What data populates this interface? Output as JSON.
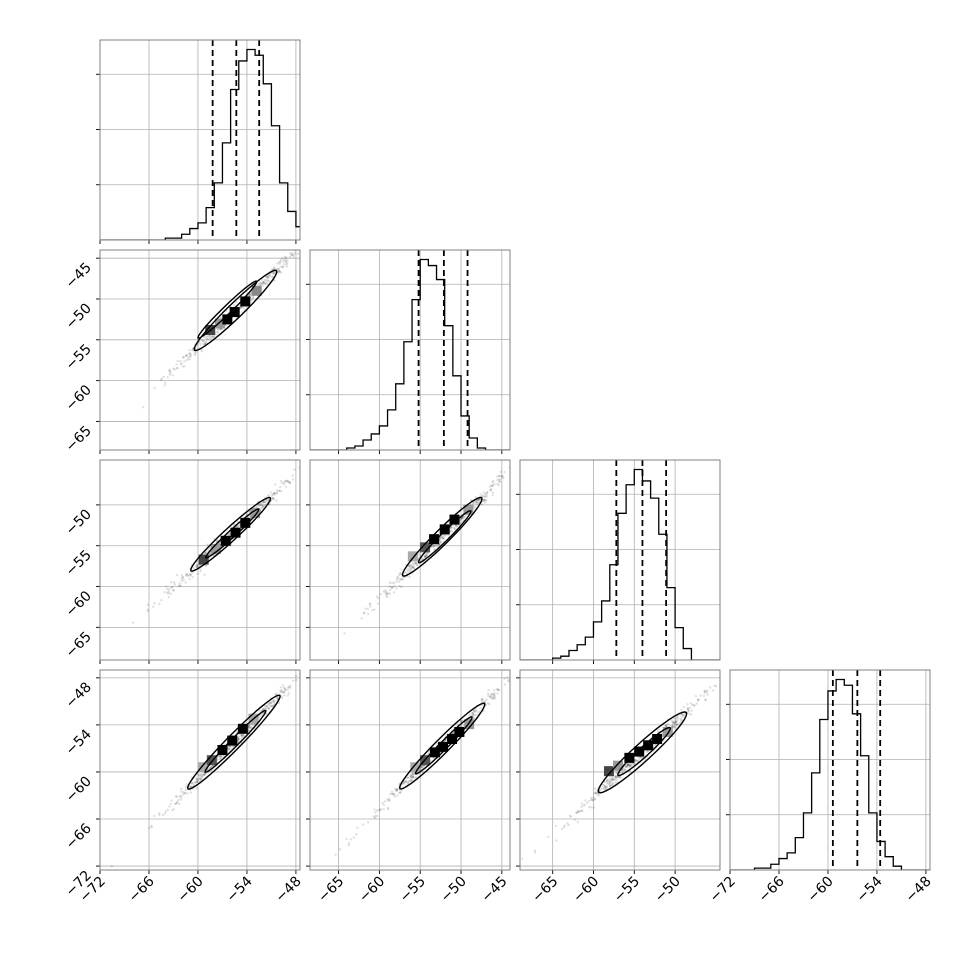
{
  "chart_data": {
    "type": "corner",
    "parameters": 4,
    "grid": true,
    "quantiles": [
      0.16,
      0.5,
      0.84
    ],
    "diagonal_histograms": [
      {
        "bin_edges": [
          -72,
          -71,
          -70,
          -69,
          -68,
          -67,
          -66,
          -65,
          -64,
          -63,
          -62,
          -61,
          -60,
          -59,
          -58,
          -57,
          -56,
          -55,
          -54,
          -53,
          -52,
          -51,
          -50,
          -49,
          -48,
          -47,
          -46,
          -45,
          -44,
          -43,
          -42,
          -41,
          -40
        ],
        "counts": [
          0,
          0,
          0,
          0,
          0,
          0,
          0,
          0,
          1,
          1,
          3,
          6,
          9,
          17,
          30,
          51,
          79,
          94,
          100,
          97,
          82,
          60,
          30,
          15,
          7,
          2,
          0,
          0,
          0,
          0,
          0,
          0
        ],
        "xlim": [
          -72,
          -47.5
        ],
        "quantile_values": [
          -58.2,
          -55.3,
          -52.5
        ]
      },
      {
        "bin_edges": [
          -69,
          -68,
          -67,
          -66,
          -65,
          -64,
          -63,
          -62,
          -61,
          -60,
          -59,
          -58,
          -57,
          -56,
          -55,
          -54,
          -53,
          -52,
          -51,
          -50,
          -49,
          -48,
          -47,
          -46,
          -45,
          -44
        ],
        "counts": [
          0,
          0,
          0,
          0,
          0,
          1,
          2,
          5,
          8,
          12,
          20,
          33,
          54,
          75,
          95,
          92,
          85,
          62,
          37,
          17,
          6,
          1,
          0,
          0,
          0
        ],
        "xlim": [
          -68.5,
          -44
        ],
        "quantile_values": [
          -55.2,
          -52.1,
          -49.2
        ]
      },
      {
        "bin_edges": [
          -69,
          -68,
          -67,
          -66,
          -65,
          -64,
          -63,
          -62,
          -61,
          -60,
          -59,
          -58,
          -57,
          -56,
          -55,
          -54,
          -53,
          -52,
          -51,
          -50,
          -49,
          -48,
          -47,
          -46,
          -45,
          -44
        ],
        "counts": [
          0,
          0,
          0,
          0,
          1,
          2,
          5,
          8,
          12,
          20,
          31,
          50,
          77,
          92,
          100,
          94,
          85,
          66,
          38,
          17,
          6,
          0,
          0,
          0,
          0
        ],
        "xlim": [
          -69,
          -44.5
        ],
        "quantile_values": [
          -57.2,
          -54.0,
          -51.1
        ]
      },
      {
        "bin_edges": [
          -72,
          -71,
          -70,
          -69,
          -68,
          -67,
          -66,
          -65,
          -64,
          -63,
          -62,
          -61,
          -60,
          -59,
          -58,
          -57,
          -56,
          -55,
          -54,
          -53,
          -52,
          -51,
          -50,
          -49,
          -48,
          -47,
          -46,
          -45,
          -44,
          -43,
          -42,
          -41,
          -40
        ],
        "counts": [
          0,
          0,
          0,
          1,
          1,
          3,
          6,
          9,
          17,
          30,
          51,
          79,
          94,
          100,
          97,
          82,
          60,
          30,
          15,
          7,
          2,
          0,
          0,
          0,
          0,
          0,
          0,
          0,
          0,
          0,
          0,
          0
        ],
        "xlim": [
          -72,
          -47.5
        ],
        "quantile_values": [
          -59.4,
          -56.4,
          -53.6
        ]
      }
    ],
    "parameter_axes": [
      {
        "lim": [
          -72,
          -47.5
        ],
        "ticks": [
          -72,
          -66,
          -60,
          -54,
          -48
        ],
        "tick_labels": [
          "−72",
          "−66",
          "−60",
          "−54",
          "−48"
        ]
      },
      {
        "lim": [
          -68.5,
          -44
        ],
        "ticks": [
          -65,
          -60,
          -55,
          -50,
          -45
        ],
        "tick_labels": [
          "−65",
          "−60",
          "−55",
          "−50",
          "−45"
        ]
      },
      {
        "lim": [
          -69,
          -44.5
        ],
        "ticks": [
          -65,
          -60,
          -55,
          -50
        ],
        "tick_labels": [
          "−65",
          "−60",
          "−55",
          "−50"
        ]
      },
      {
        "lim": [
          -72,
          -47.5
        ],
        "ticks": [
          -72,
          -66,
          -60,
          -54,
          -48
        ],
        "tick_labels": [
          "−72",
          "−66",
          "−60",
          "−54",
          "−48"
        ]
      }
    ],
    "row_axes": [
      null,
      {
        "lim": [
          -68.5,
          -44
        ],
        "ticks": [
          -65,
          -60,
          -55,
          -50,
          -45
        ],
        "tick_labels": [
          "−65",
          "−60",
          "−55",
          "−50",
          "−45"
        ]
      },
      {
        "lim": [
          -69,
          -44.5
        ],
        "ticks": [
          -65,
          -60,
          -55,
          -50
        ],
        "tick_labels": [
          "−65",
          "−60",
          "−55",
          "−50"
        ]
      },
      {
        "lim": [
          -72.5,
          -47
        ],
        "ticks": [
          -72,
          -66,
          -60,
          -54,
          -48
        ],
        "tick_labels": [
          "−72",
          "−66",
          "−60",
          "−54",
          "−48"
        ]
      }
    ],
    "point_color": "#000000",
    "line_color": "#000000",
    "grid_color": "#b0b0b0",
    "frame_color": "#808080",
    "density_cells": [
      {
        "row": 1,
        "col": 0,
        "cells": [
          [
            -58.5,
            -53.8,
            "#444444"
          ],
          [
            -57.3,
            -53.0,
            "#999999"
          ],
          [
            -56.4,
            -52.5,
            "#000000"
          ],
          [
            -55.5,
            -51.6,
            "#000000"
          ],
          [
            -54.2,
            -50.3,
            "#000000"
          ],
          [
            -52.8,
            -49.0,
            "#888888"
          ]
        ]
      },
      {
        "row": 2,
        "col": 0,
        "cells": [
          [
            -59.3,
            -56.7,
            "#444444"
          ],
          [
            -57.8,
            -55.4,
            "#999999"
          ],
          [
            -56.6,
            -54.4,
            "#000000"
          ],
          [
            -55.4,
            -53.4,
            "#000000"
          ],
          [
            -54.2,
            -52.2,
            "#000000"
          ],
          [
            -53.0,
            -51.0,
            "#999999"
          ]
        ]
      },
      {
        "row": 2,
        "col": 1,
        "cells": [
          [
            -55.9,
            -56.3,
            "#aaaaaa"
          ],
          [
            -54.4,
            -55.2,
            "#555555"
          ],
          [
            -53.3,
            -54.2,
            "#000000"
          ],
          [
            -52.0,
            -53.0,
            "#000000"
          ],
          [
            -50.8,
            -51.8,
            "#000000"
          ],
          [
            -49.1,
            -50.6,
            "#999999"
          ]
        ]
      },
      {
        "row": 3,
        "col": 0,
        "cells": [
          [
            -59.4,
            -59.4,
            "#aaaaaa"
          ],
          [
            -58.3,
            -58.5,
            "#555555"
          ],
          [
            -57.0,
            -57.2,
            "#000000"
          ],
          [
            -55.8,
            -56.0,
            "#000000"
          ],
          [
            -54.5,
            -54.5,
            "#000000"
          ],
          [
            -53.2,
            -53.2,
            "#aaaaaa"
          ]
        ]
      },
      {
        "row": 3,
        "col": 1,
        "cells": [
          [
            -55.6,
            -59.4,
            "#aaaaaa"
          ],
          [
            -54.4,
            -58.5,
            "#555555"
          ],
          [
            -53.2,
            -57.5,
            "#000000"
          ],
          [
            -52.2,
            -56.8,
            "#000000"
          ],
          [
            -51.1,
            -55.8,
            "#000000"
          ],
          [
            -50.2,
            -54.9,
            "#000000"
          ],
          [
            -49.0,
            -53.9,
            "#999999"
          ]
        ]
      },
      {
        "row": 3,
        "col": 2,
        "cells": [
          [
            -58.1,
            -59.9,
            "#444444"
          ],
          [
            -57.0,
            -59.2,
            "#999999"
          ],
          [
            -55.6,
            -58.2,
            "#000000"
          ],
          [
            -54.4,
            -57.4,
            "#000000"
          ],
          [
            -53.3,
            -56.6,
            "#000000"
          ],
          [
            -52.2,
            -55.8,
            "#000000"
          ],
          [
            -50.9,
            -54.9,
            "#999999"
          ]
        ]
      }
    ],
    "contours": [
      {
        "row": 1,
        "col": 0,
        "center": [
          -55.4,
          -51.4
        ],
        "slope": 0.97,
        "half_length": 7.0,
        "half_width": 0.9,
        "inner_offset": [
          -1.0,
          0.1
        ],
        "inner_half_length": 5.0
      },
      {
        "row": 2,
        "col": 0,
        "center": [
          -56.0,
          -53.6
        ],
        "slope": 0.92,
        "half_length": 6.6,
        "half_width": 0.8,
        "inner_offset": [
          0.2,
          0.1
        ],
        "inner_half_length": 4.4
      },
      {
        "row": 2,
        "col": 1,
        "center": [
          -52.3,
          -53.9
        ],
        "slope": 0.99,
        "half_length": 6.8,
        "half_width": 0.9,
        "inner_offset": [
          0.3,
          0.0
        ],
        "inner_half_length": 4.5
      },
      {
        "row": 3,
        "col": 0,
        "center": [
          -55.6,
          -56.2
        ],
        "slope": 1.06,
        "half_length": 8.2,
        "half_width": 0.9,
        "inner_offset": [
          0.2,
          0.1
        ],
        "inner_half_length": 5.4
      },
      {
        "row": 3,
        "col": 1,
        "center": [
          -52.3,
          -56.7
        ],
        "slope": 1.05,
        "half_length": 7.5,
        "half_width": 0.9,
        "inner_offset": [
          0.2,
          0.1
        ],
        "inner_half_length": 5.0
      },
      {
        "row": 3,
        "col": 2,
        "center": [
          -54.0,
          -57.5
        ],
        "slope": 0.95,
        "half_length": 7.4,
        "half_width": 1.1,
        "inner_offset": [
          0.2,
          0.1
        ],
        "inner_half_length": 4.4
      }
    ]
  }
}
